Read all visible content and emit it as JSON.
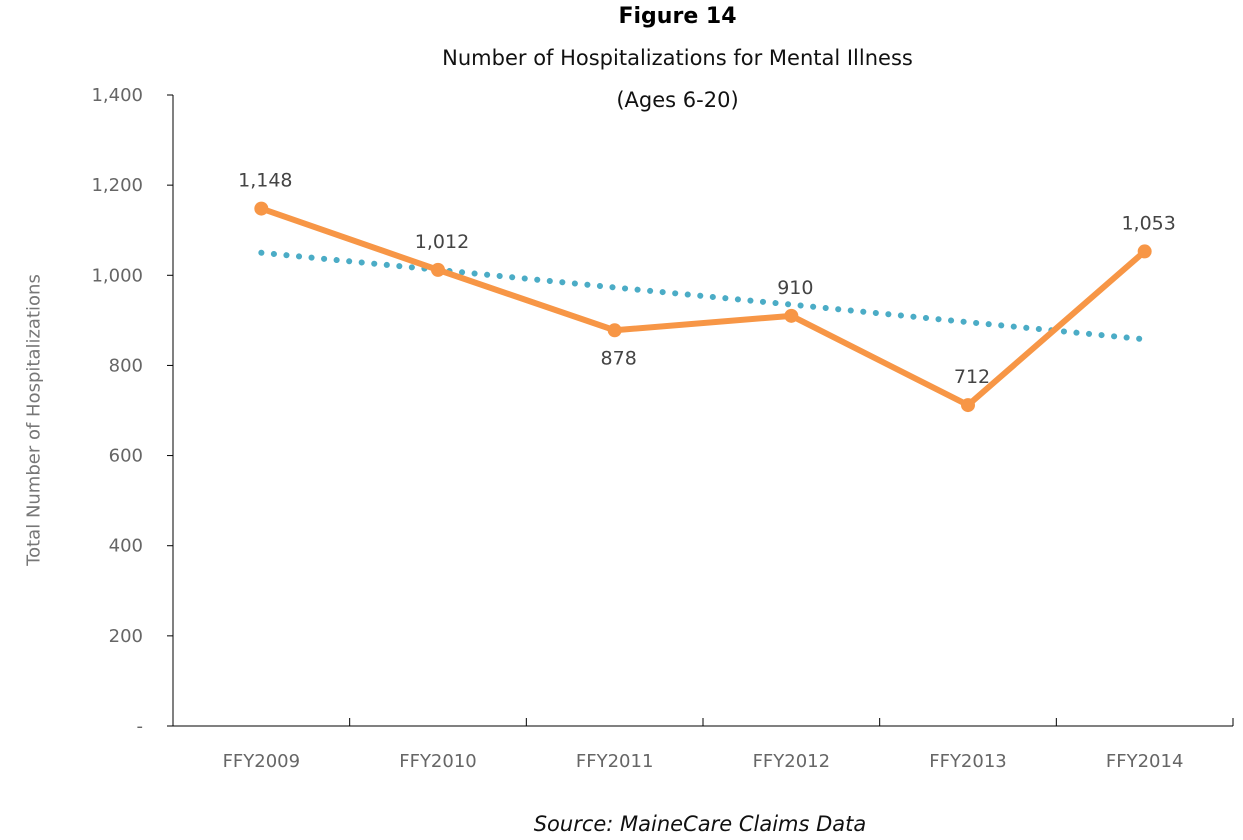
{
  "chart_data": {
    "type": "line",
    "title": "Figure 14",
    "subtitle": [
      "Number of Hospitalizations for Mental Illness",
      "(Ages 6-20)"
    ],
    "ylabel": "Total Number of Hospitalizations",
    "xlabel": "",
    "categories": [
      "FFY2009",
      "FFY2010",
      "FFY2011",
      "FFY2012",
      "FFY2013",
      "FFY2014"
    ],
    "ylim": [
      0,
      1400
    ],
    "yticks": [
      0,
      200,
      400,
      600,
      800,
      1000,
      1200,
      1400
    ],
    "ytick_labels": [
      "-",
      "200",
      "400",
      "600",
      "800",
      "1,000",
      "1,200",
      "1,400"
    ],
    "series": [
      {
        "values": [
          1148,
          1012,
          878,
          910,
          712,
          1053
        ],
        "data_labels": [
          "1,148",
          "1,012",
          "878",
          "910",
          "712",
          "1,053"
        ],
        "color": "#f79646",
        "style": "solid-with-markers"
      },
      {
        "values": [
          1050,
          1012,
          973,
          935,
          896,
          858
        ],
        "color": "#4bacc6",
        "style": "dotted-trendline"
      }
    ],
    "grid": false,
    "legend": "none",
    "source": "Source: MaineCare Claims Data"
  }
}
